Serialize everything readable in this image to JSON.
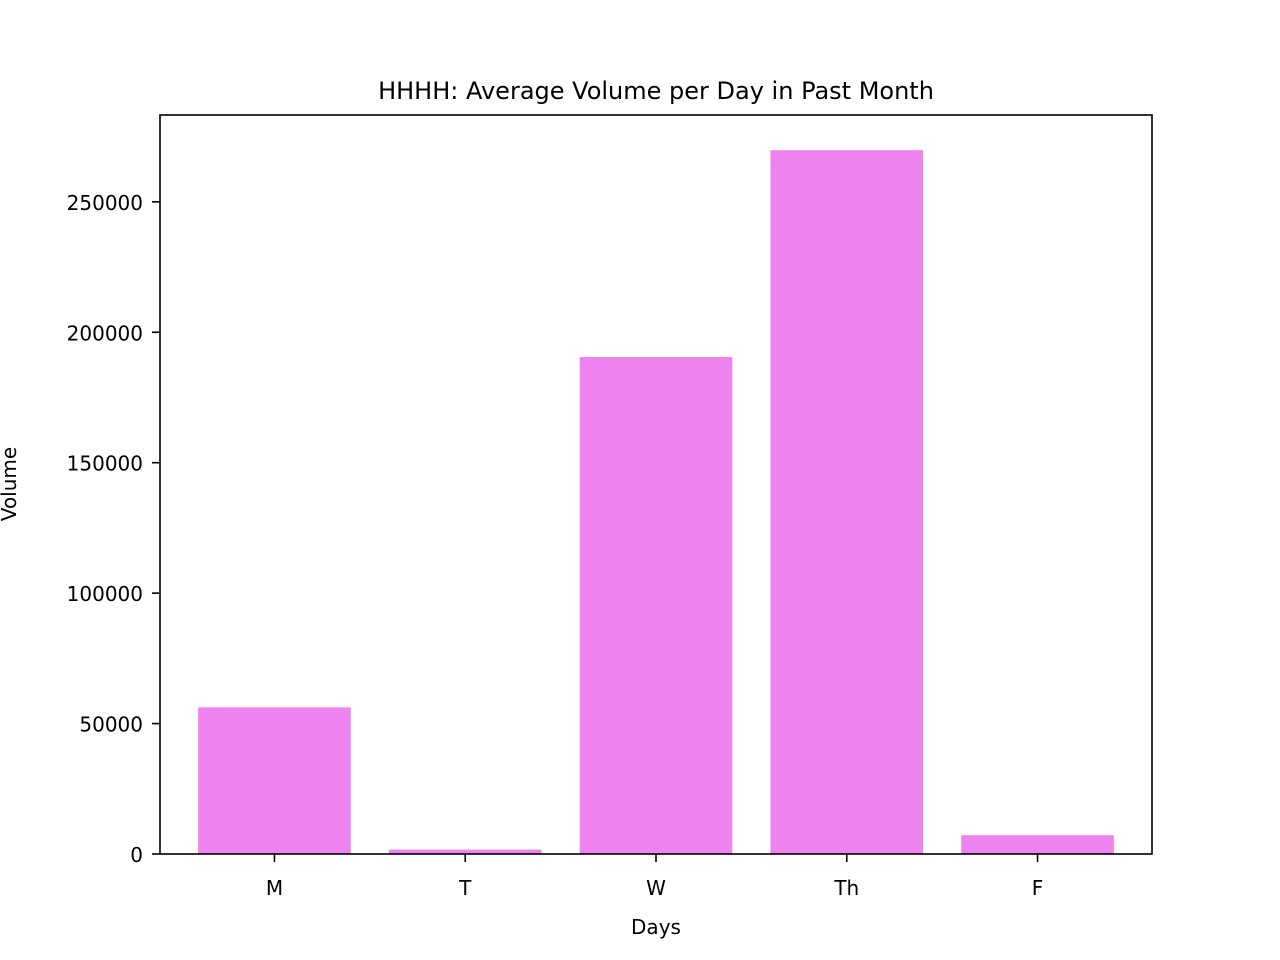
{
  "chart_data": {
    "type": "bar",
    "title": "HHHH: Average Volume per Day in Past Month",
    "xlabel": "Days",
    "ylabel": "Volume",
    "categories": [
      "M",
      "T",
      "W",
      "Th",
      "F"
    ],
    "values": [
      56200,
      1700,
      190500,
      269800,
      7200
    ],
    "ylim": [
      0,
      283290
    ],
    "yticks": [
      0,
      50000,
      100000,
      150000,
      200000,
      250000
    ],
    "ytick_labels": [
      "0",
      "50000",
      "100000",
      "150000",
      "200000",
      "250000"
    ],
    "grid": false,
    "legend": false,
    "bar_color": "#EE82EE"
  }
}
